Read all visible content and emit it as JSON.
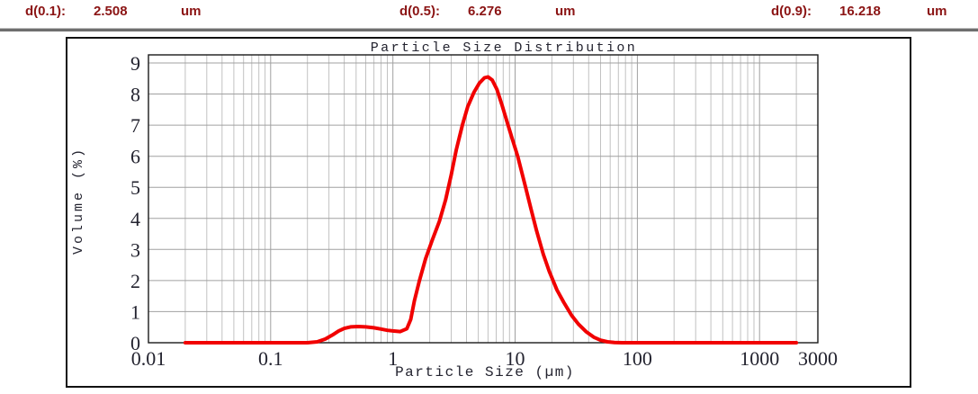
{
  "header": {
    "items": [
      {
        "label": "d(0.1):",
        "value": "2.508",
        "unit": "um"
      },
      {
        "label": "d(0.5):",
        "value": "6.276",
        "unit": "um"
      },
      {
        "label": "d(0.9):",
        "value": "16.218",
        "unit": "um"
      }
    ],
    "text_color": "#8b1414"
  },
  "chart_data": {
    "type": "line",
    "title": "Particle Size Distribution",
    "xlabel": "Particle Size (µm)",
    "ylabel": "Volume (%)",
    "x_scale": "log",
    "xlim": [
      0.01,
      3000
    ],
    "ylim": [
      0,
      9.26
    ],
    "grid": true,
    "legend": "none",
    "yticks": [
      0,
      1,
      2,
      3,
      4,
      5,
      6,
      7,
      8,
      9
    ],
    "xticks": [
      {
        "v": 0.01,
        "label": "0.01"
      },
      {
        "v": 0.1,
        "label": "0.1"
      },
      {
        "v": 1,
        "label": "1"
      },
      {
        "v": 10,
        "label": "10"
      },
      {
        "v": 100,
        "label": "100"
      },
      {
        "v": 1000,
        "label": "1000"
      },
      {
        "v": 3000,
        "label": "3000"
      }
    ],
    "colors": {
      "curve": "#f10000",
      "grid_minor": "#c2c2c2",
      "grid_major": "#a0a0a0",
      "axis": "#1a1a1a",
      "tick_text": "#23232f"
    },
    "series": [
      {
        "name": "Volume (%)",
        "color": "#f10000",
        "points": [
          [
            0.02,
            0
          ],
          [
            0.05,
            0
          ],
          [
            0.1,
            0
          ],
          [
            0.16,
            0
          ],
          [
            0.2,
            0
          ],
          [
            0.24,
            0.03
          ],
          [
            0.28,
            0.12
          ],
          [
            0.32,
            0.25
          ],
          [
            0.36,
            0.38
          ],
          [
            0.4,
            0.46
          ],
          [
            0.45,
            0.51
          ],
          [
            0.52,
            0.52
          ],
          [
            0.6,
            0.51
          ],
          [
            0.7,
            0.48
          ],
          [
            0.8,
            0.44
          ],
          [
            0.9,
            0.4
          ],
          [
            1.0,
            0.38
          ],
          [
            1.15,
            0.36
          ],
          [
            1.3,
            0.45
          ],
          [
            1.4,
            0.75
          ],
          [
            1.5,
            1.35
          ],
          [
            1.65,
            2.0
          ],
          [
            1.85,
            2.7
          ],
          [
            2.1,
            3.3
          ],
          [
            2.4,
            3.9
          ],
          [
            2.7,
            4.6
          ],
          [
            3.0,
            5.4
          ],
          [
            3.3,
            6.2
          ],
          [
            3.7,
            7.0
          ],
          [
            4.1,
            7.6
          ],
          [
            4.6,
            8.05
          ],
          [
            5.1,
            8.35
          ],
          [
            5.6,
            8.52
          ],
          [
            6.0,
            8.55
          ],
          [
            6.5,
            8.45
          ],
          [
            7.1,
            8.15
          ],
          [
            7.8,
            7.65
          ],
          [
            8.6,
            7.1
          ],
          [
            9.4,
            6.6
          ],
          [
            10.5,
            6.0
          ],
          [
            12,
            5.1
          ],
          [
            13.5,
            4.3
          ],
          [
            15,
            3.6
          ],
          [
            17,
            2.85
          ],
          [
            19,
            2.3
          ],
          [
            22,
            1.7
          ],
          [
            25,
            1.3
          ],
          [
            29,
            0.88
          ],
          [
            33,
            0.6
          ],
          [
            38,
            0.36
          ],
          [
            44,
            0.18
          ],
          [
            50,
            0.08
          ],
          [
            57,
            0.03
          ],
          [
            65,
            0.01
          ],
          [
            75,
            0
          ],
          [
            120,
            0
          ],
          [
            300,
            0
          ],
          [
            800,
            0
          ],
          [
            2000,
            0
          ]
        ]
      }
    ]
  }
}
